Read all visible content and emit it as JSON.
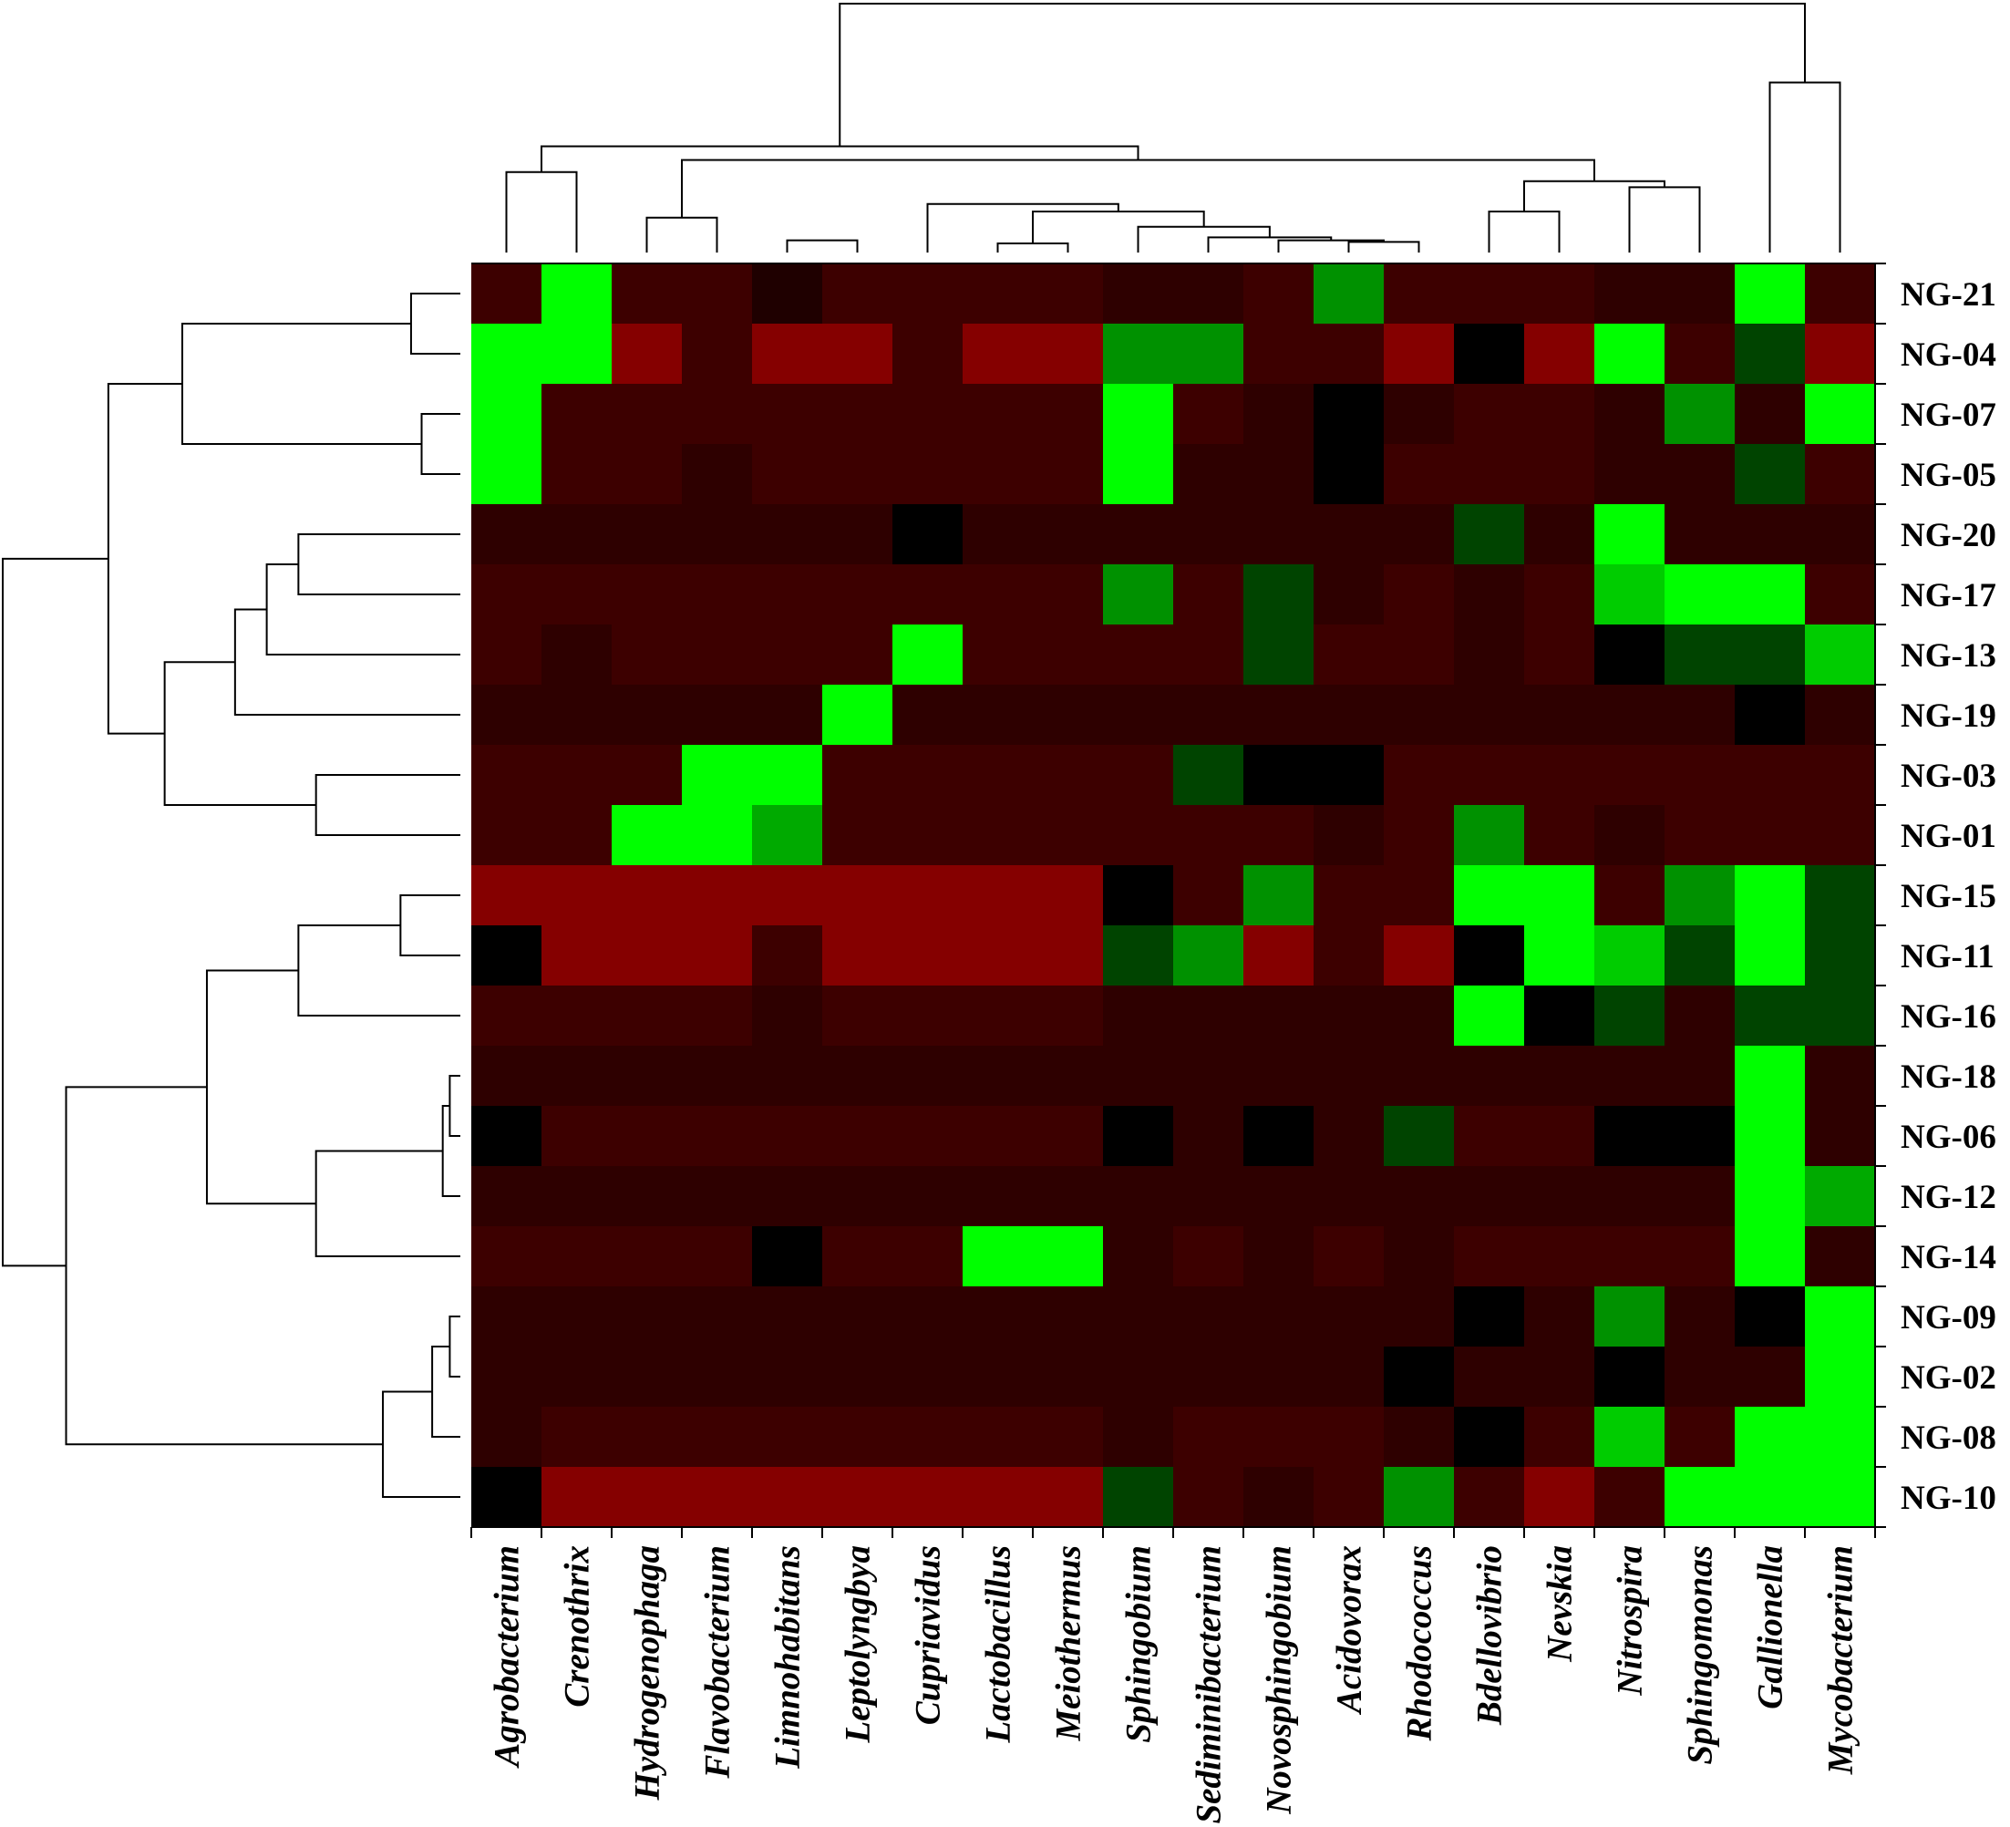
{
  "chart_data": {
    "type": "heatmap",
    "title": "",
    "xlabel": "",
    "ylabel": "",
    "columns": [
      "Agrobacterium",
      "Crenothrix",
      "Hydrogenophaga",
      "Flavobacterium",
      "Limnohabitans",
      "Leptolyngbya",
      "Cupriavidus",
      "Lactobacillus",
      "Meiothermus",
      "Sphingobium",
      "Sediminibacterium",
      "Novosphingobium",
      "Acidovorax",
      "Rhodococcus",
      "Bdellovibrio",
      "Nevskia",
      "Nitrospira",
      "Sphingomonas",
      "Gallionella",
      "Mycobacterium"
    ],
    "rows": [
      "NG-21",
      "NG-04",
      "NG-07",
      "NG-05",
      "NG-20",
      "NG-17",
      "NG-13",
      "NG-19",
      "NG-03",
      "NG-01",
      "NG-15",
      "NG-11",
      "NG-16",
      "NG-18",
      "NG-06",
      "NG-12",
      "NG-14",
      "NG-09",
      "NG-02",
      "NG-08",
      "NG-10"
    ],
    "color_scale": {
      "low": "#00ff00",
      "mid": "#000000",
      "high": "#990000"
    },
    "value_range": [
      -3,
      3
    ],
    "values": [
      [
        1.2,
        -3.0,
        1.2,
        1.2,
        0.6,
        1.2,
        1.2,
        1.2,
        1.2,
        0.9,
        0.9,
        1.2,
        -1.7,
        1.2,
        1.2,
        1.2,
        0.9,
        0.9,
        -3.0,
        1.2
      ],
      [
        -3.0,
        -3.0,
        2.6,
        1.2,
        2.6,
        2.6,
        1.2,
        2.6,
        2.6,
        -1.7,
        -1.7,
        1.2,
        1.2,
        2.6,
        0.0,
        2.6,
        -3.0,
        1.2,
        -0.8,
        2.6
      ],
      [
        -3.0,
        1.2,
        1.2,
        1.2,
        1.2,
        1.2,
        1.2,
        1.2,
        1.2,
        -3.0,
        1.2,
        0.9,
        0.0,
        0.9,
        1.2,
        1.2,
        0.9,
        -1.7,
        0.9,
        -3.0
      ],
      [
        -3.0,
        1.2,
        1.2,
        0.9,
        1.2,
        1.2,
        1.2,
        1.2,
        1.2,
        -3.0,
        0.9,
        0.9,
        0.0,
        1.2,
        1.2,
        1.2,
        0.9,
        0.9,
        -0.8,
        1.2
      ],
      [
        0.9,
        0.9,
        0.9,
        0.9,
        0.9,
        0.9,
        0.0,
        0.9,
        0.9,
        0.9,
        0.9,
        0.9,
        0.9,
        0.9,
        -0.8,
        0.9,
        -3.0,
        0.9,
        0.9,
        0.9
      ],
      [
        1.2,
        1.2,
        1.2,
        1.2,
        1.2,
        1.2,
        1.2,
        1.2,
        1.2,
        -1.7,
        1.2,
        -0.8,
        0.9,
        1.2,
        0.9,
        1.2,
        -2.4,
        -3.0,
        -3.0,
        1.2
      ],
      [
        1.2,
        0.9,
        1.2,
        1.2,
        1.2,
        1.2,
        -3.0,
        1.2,
        1.2,
        1.2,
        1.2,
        -0.8,
        1.2,
        1.2,
        0.9,
        1.2,
        0.0,
        -0.8,
        -0.8,
        -2.4
      ],
      [
        0.9,
        0.9,
        0.9,
        0.9,
        0.9,
        -3.0,
        0.9,
        0.9,
        0.9,
        0.9,
        0.9,
        0.9,
        0.9,
        0.9,
        0.9,
        0.9,
        0.9,
        0.9,
        0.0,
        0.9
      ],
      [
        1.2,
        1.2,
        1.2,
        -3.0,
        -3.0,
        1.2,
        1.2,
        1.2,
        1.2,
        1.2,
        -0.8,
        0.0,
        0.0,
        1.2,
        1.2,
        1.2,
        1.2,
        1.2,
        1.2,
        1.2
      ],
      [
        1.2,
        1.2,
        -3.0,
        -3.0,
        -2.0,
        1.2,
        1.2,
        1.2,
        1.2,
        1.2,
        1.2,
        1.2,
        0.9,
        1.2,
        -1.7,
        1.2,
        0.9,
        1.2,
        1.2,
        1.2
      ],
      [
        2.6,
        2.6,
        2.6,
        2.6,
        2.6,
        2.6,
        2.6,
        2.6,
        2.6,
        0.0,
        1.2,
        -1.7,
        1.2,
        1.2,
        -3.0,
        -3.0,
        1.2,
        -1.7,
        -3.0,
        -0.8
      ],
      [
        0.0,
        2.6,
        2.6,
        2.6,
        1.2,
        2.6,
        2.6,
        2.6,
        2.6,
        -0.8,
        -1.7,
        2.6,
        1.2,
        2.6,
        0.0,
        -3.0,
        -2.4,
        -0.8,
        -3.0,
        -0.8
      ],
      [
        1.2,
        1.2,
        1.2,
        1.2,
        0.9,
        1.2,
        1.2,
        1.2,
        1.2,
        0.9,
        0.9,
        0.9,
        0.9,
        0.9,
        -3.0,
        0.0,
        -0.8,
        0.9,
        -0.8,
        -0.8
      ],
      [
        0.9,
        0.9,
        0.9,
        0.9,
        0.9,
        0.9,
        0.9,
        0.9,
        0.9,
        0.9,
        0.9,
        0.9,
        0.9,
        0.9,
        0.9,
        0.9,
        0.9,
        0.9,
        -3.0,
        0.9
      ],
      [
        0.0,
        1.2,
        1.2,
        1.2,
        1.2,
        1.2,
        1.2,
        1.2,
        1.2,
        0.0,
        0.9,
        0.0,
        0.9,
        -0.8,
        1.2,
        1.2,
        0.0,
        0.0,
        -3.0,
        0.9
      ],
      [
        0.9,
        0.9,
        0.9,
        0.9,
        0.9,
        0.9,
        0.9,
        0.9,
        0.9,
        0.9,
        0.9,
        0.9,
        0.9,
        0.9,
        0.9,
        0.9,
        0.9,
        0.9,
        -3.0,
        -2.0
      ],
      [
        1.2,
        1.2,
        1.2,
        1.2,
        0.0,
        1.2,
        1.2,
        -3.0,
        -3.0,
        0.9,
        1.2,
        0.9,
        1.2,
        0.9,
        1.2,
        1.2,
        1.2,
        1.2,
        -3.0,
        0.9
      ],
      [
        0.9,
        0.9,
        0.9,
        0.9,
        0.9,
        0.9,
        0.9,
        0.9,
        0.9,
        0.9,
        0.9,
        0.9,
        0.9,
        0.9,
        0.0,
        0.9,
        -1.7,
        0.9,
        0.0,
        -3.0
      ],
      [
        0.9,
        0.9,
        0.9,
        0.9,
        0.9,
        0.9,
        0.9,
        0.9,
        0.9,
        0.9,
        0.9,
        0.9,
        0.9,
        0.0,
        0.9,
        0.9,
        0.0,
        0.9,
        0.9,
        -3.0
      ],
      [
        0.9,
        1.2,
        1.2,
        1.2,
        1.2,
        1.2,
        1.2,
        1.2,
        1.2,
        0.9,
        1.2,
        1.2,
        1.2,
        0.9,
        0.0,
        1.2,
        -2.4,
        1.2,
        -3.0,
        -3.0
      ],
      [
        0.0,
        2.6,
        2.6,
        2.6,
        2.6,
        2.6,
        2.6,
        2.6,
        2.6,
        -0.8,
        1.2,
        0.9,
        1.2,
        -1.7,
        1.2,
        2.6,
        1.2,
        -3.0,
        -3.0,
        -3.0
      ]
    ],
    "col_dendrogram": [
      {
        "a": 0,
        "b": 1,
        "h": 0.53
      },
      {
        "a": 4,
        "b": 5,
        "h": 0.08
      },
      {
        "a": 2,
        "b": 3,
        "h": 0.23
      },
      {
        "a": 7,
        "b": 8,
        "h": 0.06
      },
      {
        "a": 12,
        "b": 13,
        "h": 0.07
      },
      {
        "a": 11,
        "b": 12,
        "h": 0.08
      },
      {
        "a": 10,
        "b": 11,
        "h": 0.1
      },
      {
        "a": 9,
        "b": 10,
        "h": 0.17
      },
      {
        "a": 7,
        "b": 9,
        "h": 0.27
      },
      {
        "a": 6,
        "b": 7,
        "h": 0.32
      },
      {
        "a": 5,
        "b": 6,
        "h": 0.4
      },
      {
        "a": 2,
        "b": 5,
        "h": 0.47
      },
      {
        "a": 14,
        "b": 15,
        "h": 0.27
      },
      {
        "a": 16,
        "b": 17,
        "h": 0.43
      },
      {
        "a": 14,
        "b": 16,
        "h": 0.47
      },
      {
        "a": 2,
        "b": 14,
        "h": 0.61
      },
      {
        "a": 0,
        "b": 2,
        "h": 0.7
      },
      {
        "a": 18,
        "b": 19,
        "h": 1.12
      },
      {
        "a": 0,
        "b": 18,
        "h": 1.64
      }
    ],
    "row_dendrogram": [
      {
        "a": 0,
        "b": 1,
        "h": 0.14
      },
      {
        "a": 2,
        "b": 3,
        "h": 0.11
      },
      {
        "a": 0,
        "b": 2,
        "h": 0.79
      },
      {
        "a": 4,
        "b": 5,
        "h": 0.46
      },
      {
        "a": 4,
        "b": 6,
        "h": 0.55
      },
      {
        "a": 4,
        "b": 7,
        "h": 0.64
      },
      {
        "a": 8,
        "b": 9,
        "h": 0.41
      },
      {
        "a": 4,
        "b": 8,
        "h": 0.84
      },
      {
        "a": 0,
        "b": 4,
        "h": 1.0
      },
      {
        "a": 10,
        "b": 11,
        "h": 0.17
      },
      {
        "a": 10,
        "b": 12,
        "h": 0.46
      },
      {
        "a": 13,
        "b": 14,
        "h": 0.03
      },
      {
        "a": 13,
        "b": 15,
        "h": 0.05
      },
      {
        "a": 13,
        "b": 16,
        "h": 0.41
      },
      {
        "a": 10,
        "b": 13,
        "h": 0.72
      },
      {
        "a": 17,
        "b": 18,
        "h": 0.03
      },
      {
        "a": 17,
        "b": 19,
        "h": 0.08
      },
      {
        "a": 17,
        "b": 20,
        "h": 0.22
      },
      {
        "a": 10,
        "b": 17,
        "h": 1.12
      },
      {
        "a": 0,
        "b": 10,
        "h": 1.3
      }
    ]
  }
}
